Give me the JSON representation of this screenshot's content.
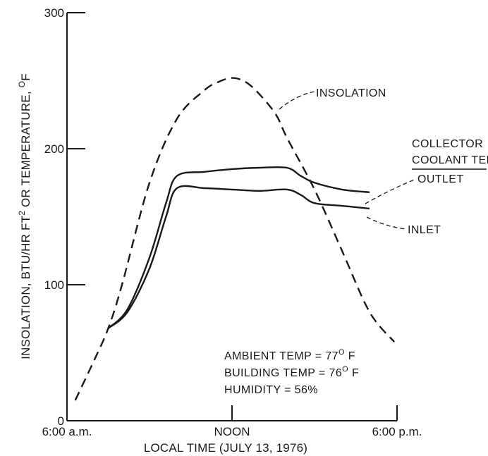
{
  "chart_data": {
    "type": "line",
    "xlabel": "LOCAL TIME (JULY 13, 1976)",
    "ylabel_parts": [
      "INSOLATION, BTU/HR FT",
      "2",
      " OR TEMPERATURE, ",
      "O",
      "F"
    ],
    "x_ticks": [
      {
        "label": "6:00 a.m.",
        "hour": 6
      },
      {
        "label": "NOON",
        "hour": 12
      },
      {
        "label": "6:00 p.m.",
        "hour": 18
      }
    ],
    "y_ticks": [
      0,
      100,
      200,
      300
    ],
    "xlim": [
      6,
      18
    ],
    "ylim": [
      0,
      300
    ],
    "legend_header": [
      "COLLECTOR",
      "COOLANT TEMP"
    ],
    "series": [
      {
        "name": "INSOLATION",
        "style": "dashed",
        "points": [
          [
            6.3,
            15
          ],
          [
            7.0,
            45
          ],
          [
            7.5,
            68
          ],
          [
            8.0,
            100
          ],
          [
            9.0,
            175
          ],
          [
            10.0,
            222
          ],
          [
            11.0,
            243
          ],
          [
            11.5,
            249
          ],
          [
            12.0,
            252
          ],
          [
            12.5,
            249
          ],
          [
            13.0,
            240
          ],
          [
            13.6,
            225
          ],
          [
            14.0,
            208
          ],
          [
            15.0,
            170
          ],
          [
            16.0,
            125
          ],
          [
            17.0,
            80
          ],
          [
            17.9,
            58
          ]
        ]
      },
      {
        "name": "OUTLET",
        "style": "solid",
        "points": [
          [
            7.5,
            68
          ],
          [
            8.2,
            82
          ],
          [
            9.0,
            120
          ],
          [
            9.6,
            160
          ],
          [
            10.0,
            180
          ],
          [
            11.0,
            183
          ],
          [
            12.0,
            185
          ],
          [
            13.0,
            186
          ],
          [
            14.0,
            186
          ],
          [
            14.5,
            180
          ],
          [
            15.0,
            175
          ],
          [
            16.0,
            170
          ],
          [
            17.0,
            168
          ]
        ]
      },
      {
        "name": "INLET",
        "style": "solid",
        "points": [
          [
            7.5,
            68
          ],
          [
            8.2,
            80
          ],
          [
            9.0,
            112
          ],
          [
            9.6,
            150
          ],
          [
            10.0,
            171
          ],
          [
            11.0,
            171
          ],
          [
            12.0,
            170
          ],
          [
            13.0,
            169
          ],
          [
            14.0,
            170
          ],
          [
            14.5,
            166
          ],
          [
            15.0,
            160
          ],
          [
            16.0,
            158
          ],
          [
            17.0,
            156
          ]
        ]
      }
    ],
    "conditions": {
      "ambient": {
        "text": "AMBIENT TEMP = 77",
        "sup": "O",
        "unit": " F"
      },
      "building": {
        "text": "BUILDING TEMP = 76",
        "sup": "O",
        "unit": " F"
      },
      "humidity": {
        "text": "HUMIDITY = 56%"
      }
    },
    "grid": false
  }
}
